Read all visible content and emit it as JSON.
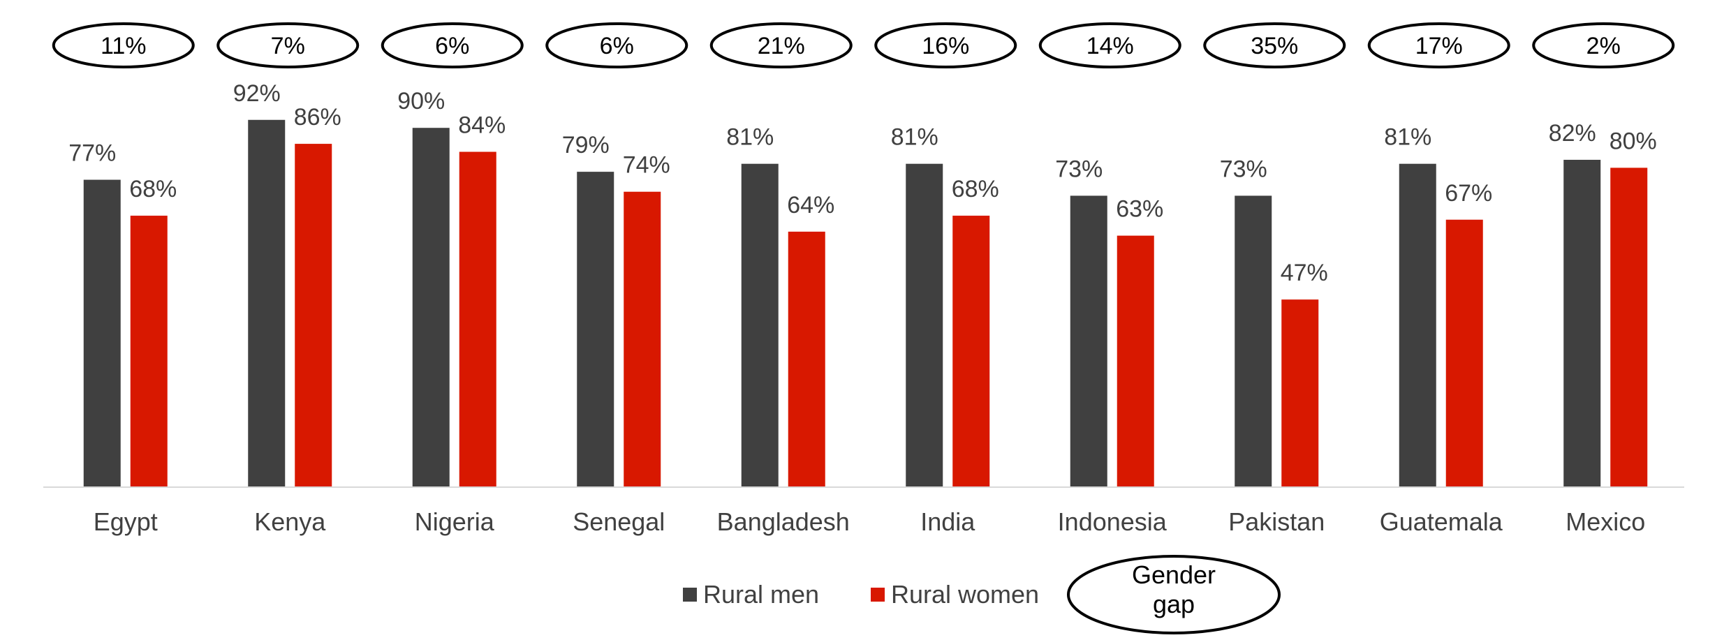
{
  "chart_data": {
    "type": "bar",
    "categories": [
      "Egypt",
      "Kenya",
      "Nigeria",
      "Senegal",
      "Bangladesh",
      "India",
      "Indonesia",
      "Pakistan",
      "Guatemala",
      "Mexico"
    ],
    "series": [
      {
        "name": "Rural men",
        "color": "#404040",
        "values": [
          77,
          92,
          90,
          79,
          81,
          81,
          73,
          73,
          81,
          82
        ],
        "labels": [
          "77%",
          "92%",
          "90%",
          "79%",
          "81%",
          "81%",
          "73%",
          "73%",
          "81%",
          "82%"
        ]
      },
      {
        "name": "Rural women",
        "color": "#d81800",
        "values": [
          68,
          86,
          84,
          74,
          64,
          68,
          63,
          47,
          67,
          80
        ],
        "labels": [
          "68%",
          "86%",
          "84%",
          "74%",
          "64%",
          "68%",
          "63%",
          "47%",
          "67%",
          "80%"
        ]
      }
    ],
    "gender_gap": {
      "values": [
        11,
        7,
        6,
        6,
        21,
        16,
        14,
        35,
        17,
        2
      ],
      "labels": [
        "11%",
        "7%",
        "6%",
        "6%",
        "21%",
        "16%",
        "14%",
        "35%",
        "17%",
        "2%"
      ]
    },
    "legend": {
      "placement": "bottom",
      "items": [
        "Rural men",
        "Rural women"
      ],
      "gap_legend": "Gender gap"
    },
    "ylim": [
      0,
      100
    ],
    "grid": false,
    "title": "",
    "xlabel": "",
    "ylabel": ""
  }
}
